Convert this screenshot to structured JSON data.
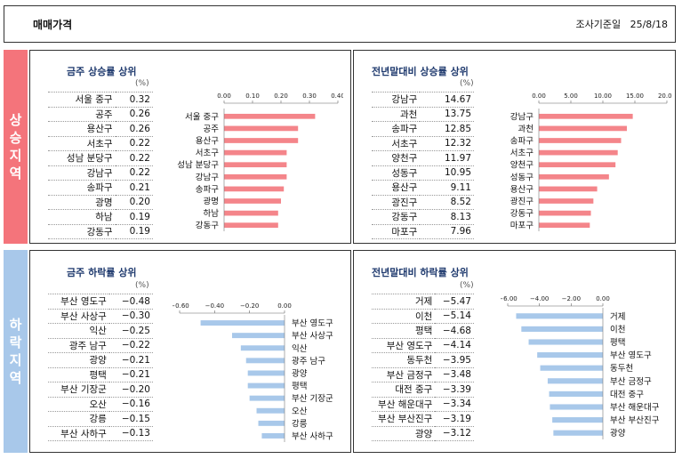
{
  "header": {
    "title": "매매가격",
    "date_label": "조사기준일",
    "date": "25/8/18"
  },
  "sides": {
    "up": "상승지역",
    "down": "하락지역"
  },
  "unit": "(%)",
  "chart_data": [
    {
      "id": "p1",
      "type": "bar",
      "title": "금주 상승률 상위",
      "categories": [
        "서울 중구",
        "공주",
        "용산구",
        "서초구",
        "성남 분당구",
        "강남구",
        "송파구",
        "광명",
        "하남",
        "강동구"
      ],
      "values": [
        0.32,
        0.26,
        0.26,
        0.22,
        0.22,
        0.22,
        0.21,
        0.2,
        0.19,
        0.19
      ],
      "display": [
        "0.32",
        "0.26",
        "0.26",
        "0.22",
        "0.22",
        "0.22",
        "0.21",
        "0.20",
        "0.19",
        "0.19"
      ],
      "xlim": [
        0,
        0.4
      ],
      "ticks": [
        "0.00",
        "0.10",
        "0.20",
        "0.30",
        "0.40"
      ],
      "color": "#f4858a"
    },
    {
      "id": "p2",
      "type": "bar",
      "title": "전년말대비 상승률 상위",
      "categories": [
        "강남구",
        "과천",
        "송파구",
        "서초구",
        "양천구",
        "성동구",
        "용산구",
        "광진구",
        "강동구",
        "마포구"
      ],
      "values": [
        14.67,
        13.75,
        12.85,
        12.32,
        11.97,
        10.95,
        9.11,
        8.52,
        8.13,
        7.96
      ],
      "display": [
        "14.67",
        "13.75",
        "12.85",
        "12.32",
        "11.97",
        "10.95",
        "9.11",
        "8.52",
        "8.13",
        "7.96"
      ],
      "xlim": [
        0,
        20
      ],
      "ticks": [
        "0.00",
        "5.00",
        "10.00",
        "15.00",
        "20.00"
      ],
      "color": "#f4858a"
    },
    {
      "id": "p3",
      "type": "bar",
      "title": "금주 하락률 상위",
      "categories": [
        "부산 영도구",
        "부산 사상구",
        "익산",
        "광주 남구",
        "광양",
        "평택",
        "부산 기장군",
        "오산",
        "강릉",
        "부산 사하구"
      ],
      "values": [
        -0.48,
        -0.3,
        -0.25,
        -0.22,
        -0.21,
        -0.21,
        -0.2,
        -0.16,
        -0.15,
        -0.13
      ],
      "display": [
        "-0.48",
        "-0.30",
        "-0.25",
        "-0.22",
        "-0.21",
        "-0.21",
        "-0.20",
        "-0.16",
        "-0.15",
        "-0.13"
      ],
      "xlim": [
        -0.6,
        0
      ],
      "ticks": [
        "-0.60",
        "-0.40",
        "-0.20",
        "0.00"
      ],
      "color": "#a8c8ea"
    },
    {
      "id": "p4",
      "type": "bar",
      "title": "전년말대비 하락률 상위",
      "categories": [
        "거제",
        "이천",
        "평택",
        "부산 영도구",
        "동두천",
        "부산 금정구",
        "대전 중구",
        "부산 해운대구",
        "부산 부산진구",
        "광양"
      ],
      "values": [
        -5.47,
        -5.14,
        -4.68,
        -4.14,
        -3.95,
        -3.48,
        -3.39,
        -3.34,
        -3.19,
        -3.12
      ],
      "display": [
        "-5.47",
        "-5.14",
        "-4.68",
        "-4.14",
        "-3.95",
        "-3.48",
        "-3.39",
        "-3.34",
        "-3.19",
        "-3.12"
      ],
      "xlim": [
        -6,
        0
      ],
      "ticks": [
        "-6.00",
        "-4.00",
        "-2.00",
        "0.00"
      ],
      "color": "#a8c8ea"
    }
  ]
}
